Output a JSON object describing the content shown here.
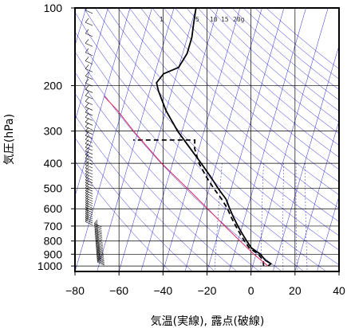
{
  "chart_data": {
    "type": "skew-t log-p",
    "xlabel": "気温(実線), 露点(破線)",
    "ylabel": "気圧(hPa)",
    "x_ticks": [
      -80,
      -60,
      -40,
      -20,
      0,
      20,
      40
    ],
    "y_ticks": [
      100,
      200,
      300,
      400,
      500,
      600,
      700,
      800,
      900,
      1000
    ],
    "xlim": [
      -80,
      40
    ],
    "ylim_hpa": [
      1050,
      100
    ],
    "mixing_ratio_labels": [
      "1",
      "5",
      "10",
      "15",
      "20g"
    ],
    "colors": {
      "temperature": "#000000",
      "dewpoint": "#000000",
      "parcel": "#e0245e",
      "background_lines": "#2424d8",
      "grid": "#000000"
    },
    "series": [
      {
        "kind": "temperature",
        "style": "solid",
        "points": [
          [
            1000,
            7
          ],
          [
            980,
            8
          ],
          [
            950,
            5
          ],
          [
            900,
            2
          ],
          [
            850,
            -3
          ],
          [
            800,
            -6
          ],
          [
            750,
            -9
          ],
          [
            700,
            -12
          ],
          [
            650,
            -15
          ],
          [
            600,
            -18
          ],
          [
            550,
            -21
          ],
          [
            500,
            -26
          ],
          [
            450,
            -31
          ],
          [
            400,
            -37
          ],
          [
            350,
            -44
          ],
          [
            300,
            -52
          ],
          [
            250,
            -60
          ],
          [
            210,
            -66
          ],
          [
            195,
            -68
          ],
          [
            180,
            -66
          ],
          [
            170,
            -60
          ],
          [
            150,
            -58
          ],
          [
            130,
            -58
          ],
          [
            115,
            -59
          ],
          [
            100,
            -60
          ]
        ]
      },
      {
        "kind": "dewpoint",
        "style": "dashed",
        "points": [
          [
            1000,
            5
          ],
          [
            950,
            4
          ],
          [
            900,
            1
          ],
          [
            850,
            -4
          ],
          [
            800,
            -7
          ],
          [
            750,
            -10
          ],
          [
            700,
            -13
          ],
          [
            650,
            -16
          ],
          [
            600,
            -19
          ],
          [
            550,
            -23
          ],
          [
            500,
            -28
          ],
          [
            450,
            -33
          ],
          [
            400,
            -38
          ],
          [
            350,
            -42
          ],
          [
            325,
            -43
          ],
          [
            325,
            -71
          ]
        ]
      },
      {
        "kind": "parcel",
        "style": "solid",
        "points": [
          [
            1000,
            7
          ],
          [
            900,
            -1
          ],
          [
            800,
            -9
          ],
          [
            700,
            -18
          ],
          [
            600,
            -28
          ],
          [
            500,
            -40
          ],
          [
            400,
            -55
          ],
          [
            300,
            -72
          ],
          [
            250,
            -82
          ],
          [
            220,
            -90
          ]
        ]
      }
    ],
    "wind_column_note": "wind barbs drawn along left edge at ~-72 (upper levels) shifting to ~-68 near surface"
  }
}
